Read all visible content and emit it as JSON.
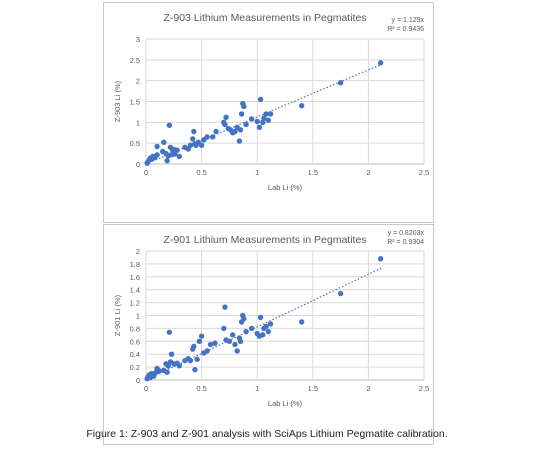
{
  "figure": {
    "caption": "Figure 1: Z-903 and Z-901 analysis with SciAps Lithium Pegmatite calibration."
  },
  "chart_data": [
    {
      "type": "scatter",
      "title": "Z-903 Lithium Measurements in Pegmatites",
      "xlabel": "Lab Li (%)",
      "ylabel": "Z-903 Li (%)",
      "xlim": [
        0,
        2.5
      ],
      "ylim": [
        0,
        3
      ],
      "xticks": [
        "0",
        "0.5",
        "1",
        "1.5",
        "2",
        "2.5"
      ],
      "yticks": [
        "0",
        "0.5",
        "1",
        "1.5",
        "2",
        "2.5",
        "3"
      ],
      "grid": true,
      "color": "#4472c4",
      "trendline": {
        "slope": 1.129,
        "x_range": [
          0,
          2.12
        ],
        "style": "dotted"
      },
      "equation": "y = 1.129x",
      "r2": "R² = 0.9436",
      "points": [
        [
          0.01,
          0.02
        ],
        [
          0.02,
          0.06
        ],
        [
          0.03,
          0.1
        ],
        [
          0.04,
          0.14
        ],
        [
          0.05,
          0.12
        ],
        [
          0.06,
          0.18
        ],
        [
          0.08,
          0.15
        ],
        [
          0.1,
          0.22
        ],
        [
          0.1,
          0.42
        ],
        [
          0.15,
          0.3
        ],
        [
          0.16,
          0.52
        ],
        [
          0.18,
          0.25
        ],
        [
          0.19,
          0.08
        ],
        [
          0.2,
          0.2
        ],
        [
          0.21,
          0.93
        ],
        [
          0.22,
          0.4
        ],
        [
          0.23,
          0.22
        ],
        [
          0.24,
          0.33
        ],
        [
          0.25,
          0.35
        ],
        [
          0.26,
          0.24
        ],
        [
          0.28,
          0.33
        ],
        [
          0.3,
          0.18
        ],
        [
          0.35,
          0.4
        ],
        [
          0.38,
          0.36
        ],
        [
          0.4,
          0.45
        ],
        [
          0.42,
          0.6
        ],
        [
          0.43,
          0.78
        ],
        [
          0.44,
          0.48
        ],
        [
          0.45,
          0.45
        ],
        [
          0.47,
          0.52
        ],
        [
          0.5,
          0.45
        ],
        [
          0.52,
          0.58
        ],
        [
          0.55,
          0.65
        ],
        [
          0.6,
          0.65
        ],
        [
          0.63,
          0.78
        ],
        [
          0.7,
          1.0
        ],
        [
          0.71,
          0.95
        ],
        [
          0.72,
          1.12
        ],
        [
          0.74,
          0.85
        ],
        [
          0.76,
          0.82
        ],
        [
          0.78,
          0.75
        ],
        [
          0.8,
          0.78
        ],
        [
          0.82,
          0.88
        ],
        [
          0.84,
          0.55
        ],
        [
          0.85,
          0.82
        ],
        [
          0.86,
          1.2
        ],
        [
          0.87,
          1.45
        ],
        [
          0.88,
          1.38
        ],
        [
          0.9,
          0.95
        ],
        [
          0.95,
          1.08
        ],
        [
          1.0,
          1.02
        ],
        [
          1.02,
          0.88
        ],
        [
          1.03,
          1.55
        ],
        [
          1.05,
          1.0
        ],
        [
          1.06,
          1.1
        ],
        [
          1.08,
          1.2
        ],
        [
          1.1,
          1.05
        ],
        [
          1.12,
          1.2
        ],
        [
          1.4,
          1.4
        ],
        [
          1.75,
          1.95
        ],
        [
          2.11,
          2.43
        ]
      ]
    },
    {
      "type": "scatter",
      "title": "Z-901 Lithium Measurements in Pegmatites",
      "xlabel": "Lab Li (%)",
      "ylabel": "Z-901 Li (%)",
      "xlim": [
        0,
        2.5
      ],
      "ylim": [
        0,
        2
      ],
      "xticks": [
        "0",
        "0.5",
        "1",
        "1.5",
        "2",
        "2.5"
      ],
      "yticks": [
        "0",
        "0.2",
        "0.4",
        "0.6",
        "0.8",
        "1",
        "1.2",
        "1.4",
        "1.6",
        "1.8",
        "2"
      ],
      "grid": true,
      "color": "#4472c4",
      "trendline": {
        "slope": 0.8203,
        "x_range": [
          0,
          2.12
        ],
        "style": "dotted"
      },
      "equation": "y = 0.8203x",
      "r2": "R² = 0.9304",
      "points": [
        [
          0.01,
          0.02
        ],
        [
          0.02,
          0.05
        ],
        [
          0.03,
          0.08
        ],
        [
          0.04,
          0.04
        ],
        [
          0.05,
          0.1
        ],
        [
          0.07,
          0.06
        ],
        [
          0.09,
          0.12
        ],
        [
          0.1,
          0.18
        ],
        [
          0.12,
          0.14
        ],
        [
          0.16,
          0.15
        ],
        [
          0.18,
          0.25
        ],
        [
          0.19,
          0.12
        ],
        [
          0.2,
          0.22
        ],
        [
          0.21,
          0.74
        ],
        [
          0.22,
          0.28
        ],
        [
          0.23,
          0.4
        ],
        [
          0.25,
          0.25
        ],
        [
          0.28,
          0.26
        ],
        [
          0.3,
          0.22
        ],
        [
          0.35,
          0.3
        ],
        [
          0.38,
          0.33
        ],
        [
          0.4,
          0.3
        ],
        [
          0.42,
          0.48
        ],
        [
          0.43,
          0.52
        ],
        [
          0.44,
          0.16
        ],
        [
          0.46,
          0.32
        ],
        [
          0.48,
          0.6
        ],
        [
          0.5,
          0.68
        ],
        [
          0.52,
          0.42
        ],
        [
          0.55,
          0.45
        ],
        [
          0.58,
          0.55
        ],
        [
          0.62,
          0.57
        ],
        [
          0.7,
          0.8
        ],
        [
          0.71,
          1.13
        ],
        [
          0.72,
          0.62
        ],
        [
          0.75,
          0.6
        ],
        [
          0.78,
          0.7
        ],
        [
          0.8,
          0.55
        ],
        [
          0.82,
          0.45
        ],
        [
          0.84,
          0.65
        ],
        [
          0.85,
          0.6
        ],
        [
          0.86,
          0.9
        ],
        [
          0.87,
          1.0
        ],
        [
          0.88,
          0.95
        ],
        [
          0.9,
          0.75
        ],
        [
          0.95,
          0.8
        ],
        [
          1.0,
          0.72
        ],
        [
          1.02,
          0.68
        ],
        [
          1.03,
          0.97
        ],
        [
          1.05,
          0.7
        ],
        [
          1.06,
          0.8
        ],
        [
          1.08,
          0.83
        ],
        [
          1.1,
          0.75
        ],
        [
          1.12,
          0.87
        ],
        [
          1.4,
          0.9
        ],
        [
          1.75,
          1.34
        ],
        [
          2.11,
          1.88
        ]
      ]
    }
  ]
}
